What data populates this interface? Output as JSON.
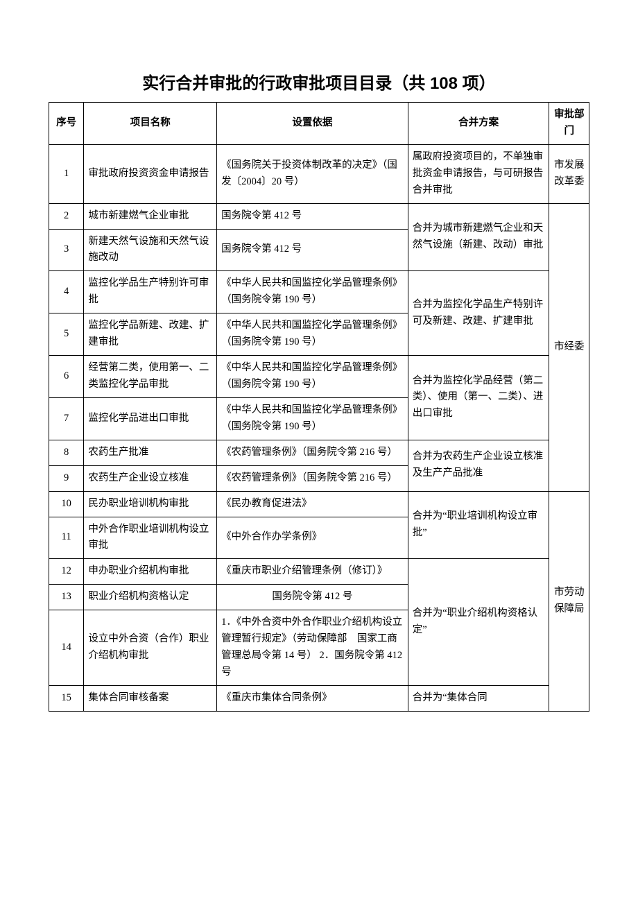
{
  "title": "实行合并审批的行政审批项目目录（共 108 项）",
  "headers": {
    "seq": "序号",
    "name": "项目名称",
    "basis": "设置依据",
    "plan": "合并方案",
    "dept": "审批部门"
  },
  "rows": [
    {
      "seq": "1",
      "name": "审批政府投资资金申请报告",
      "basis": "《国务院关于投资体制改革的决定》（国发〔2004〕20 号）"
    },
    {
      "seq": "2",
      "name": "城市新建燃气企业审批",
      "basis": "国务院令第 412 号"
    },
    {
      "seq": "3",
      "name": "新建天然气设施和天然气设施改动",
      "basis": "国务院令第 412 号"
    },
    {
      "seq": "4",
      "name": "监控化学品生产特别许可审批",
      "basis": "《中华人民共和国监控化学品管理条例》（国务院令第 190 号）"
    },
    {
      "seq": "5",
      "name": "监控化学品新建、改建、扩建审批",
      "basis": "《中华人民共和国监控化学品管理条例》（国务院令第 190 号）"
    },
    {
      "seq": "6",
      "name": "经营第二类，使用第一、二类监控化学品审批",
      "basis": "《中华人民共和国监控化学品管理条例》（国务院令第 190 号）"
    },
    {
      "seq": "7",
      "name": "监控化学品进出口审批",
      "basis": "《中华人民共和国监控化学品管理条例》（国务院令第 190 号）"
    },
    {
      "seq": "8",
      "name": "农药生产批准",
      "basis": "《农药管理条例》（国务院令第 216 号）"
    },
    {
      "seq": "9",
      "name": "农药生产企业设立核准",
      "basis": "《农药管理条例》（国务院令第 216 号）"
    },
    {
      "seq": "10",
      "name": "民办职业培训机构审批",
      "basis": "《民办教育促进法》"
    },
    {
      "seq": "11",
      "name": "中外合作职业培训机构设立审批",
      "basis": "《中外合作办学条例》"
    },
    {
      "seq": "12",
      "name": "申办职业介绍机构审批",
      "basis": "《重庆市职业介绍管理条例（修订）》"
    },
    {
      "seq": "13",
      "name": "职业介绍机构资格认定",
      "basis": "国务院令第 412 号"
    },
    {
      "seq": "14",
      "name": "设立中外合资（合作）职业介绍机构审批",
      "basis": "1．《中外合资中外合作职业介绍机构设立管理暂行规定》（劳动保障部　国家工商管理总局令第 14 号）\n2．国务院令第 412 号"
    },
    {
      "seq": "15",
      "name": "集体合同审核备案",
      "basis": "《重庆市集体合同条例》"
    }
  ],
  "plans": {
    "p1": "属政府投资项目的，不单独审批资金申请报告，与可研报告合并审批",
    "p23": "合并为城市新建燃气企业和天然气设施（新建、改动）审批",
    "p45": "合并为监控化学品生产特别许可及新建、改建、扩建审批",
    "p67": "合并为监控化学品经营（第二类）、使用（第一、二类）、进出口审批",
    "p89": "合并为农药生产企业设立核准及生产产品批准",
    "p1011": "合并为“职业培训机构设立审批”",
    "p1214": "合并为“职业介绍机构资格认定”",
    "p15": "合并为“集体合同"
  },
  "depts": {
    "d1": "市发展改革委",
    "d2": "市经委",
    "d3": "市劳动保障局"
  }
}
